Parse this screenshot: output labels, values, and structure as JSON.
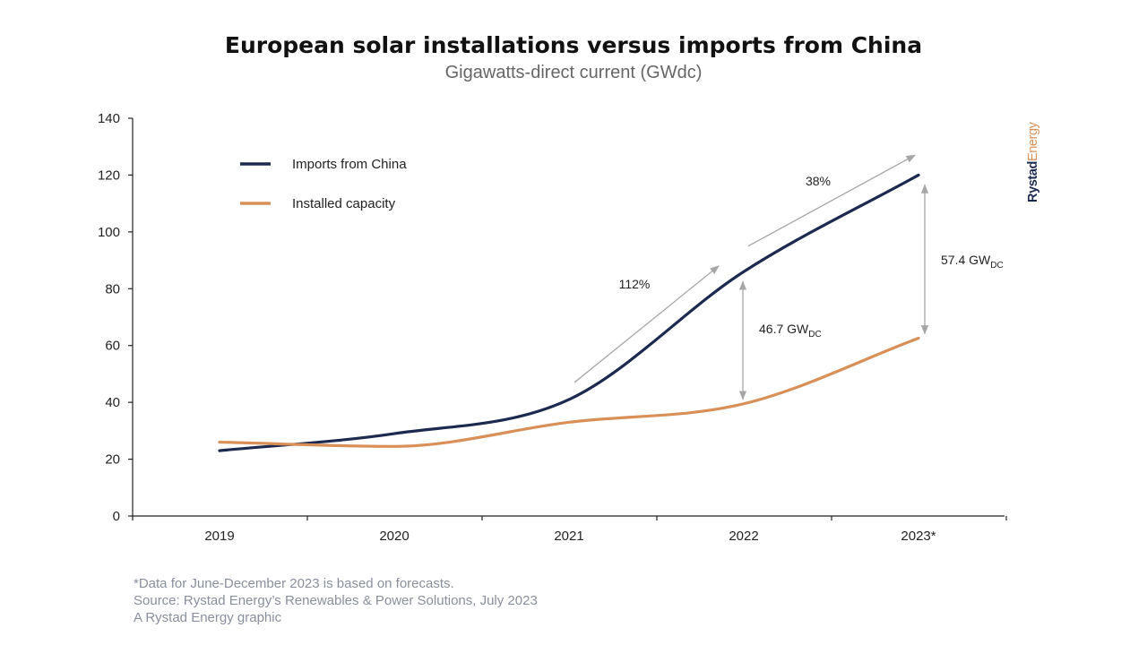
{
  "title": "European solar installations versus imports from China",
  "subtitle": "Gigawatts-direct current (GWdc)",
  "chart_data": {
    "type": "line",
    "categories": [
      "2019",
      "2020",
      "2021",
      "2022",
      "2023*"
    ],
    "ylim": [
      0,
      140
    ],
    "yticks": [
      0,
      20,
      40,
      60,
      80,
      100,
      120,
      140
    ],
    "grid": false,
    "legend_position": "top-left",
    "series": [
      {
        "name": "Imports from China",
        "color": "#1b2a4e",
        "values": [
          23,
          29,
          41,
          86,
          120
        ]
      },
      {
        "name": "Installed capacity",
        "color": "#d99058",
        "values": [
          26,
          24.5,
          33,
          39.5,
          62.6
        ]
      }
    ],
    "annotations": [
      {
        "type": "growth-arrow",
        "label": "112%",
        "from_category": "2021",
        "to_category": "2022"
      },
      {
        "type": "growth-arrow",
        "label": "38%",
        "from_category": "2022",
        "to_category": "2023*"
      },
      {
        "type": "gap",
        "category": "2022",
        "main": "46.7 GW",
        "sub": "DC"
      },
      {
        "type": "gap",
        "category": "2023*",
        "main": "57.4 GW",
        "sub": "DC"
      }
    ]
  },
  "footer": {
    "note": "*Data for June-December 2023 is based on forecasts.",
    "source": "Source: Rystad Energy’s Renewables & Power Solutions, July 2023",
    "credit": "A Rystad Energy graphic"
  },
  "logo": {
    "part1": "Rystad",
    "part2": "Energy",
    "color1": "#1b2a4e",
    "color2": "#d99058"
  }
}
